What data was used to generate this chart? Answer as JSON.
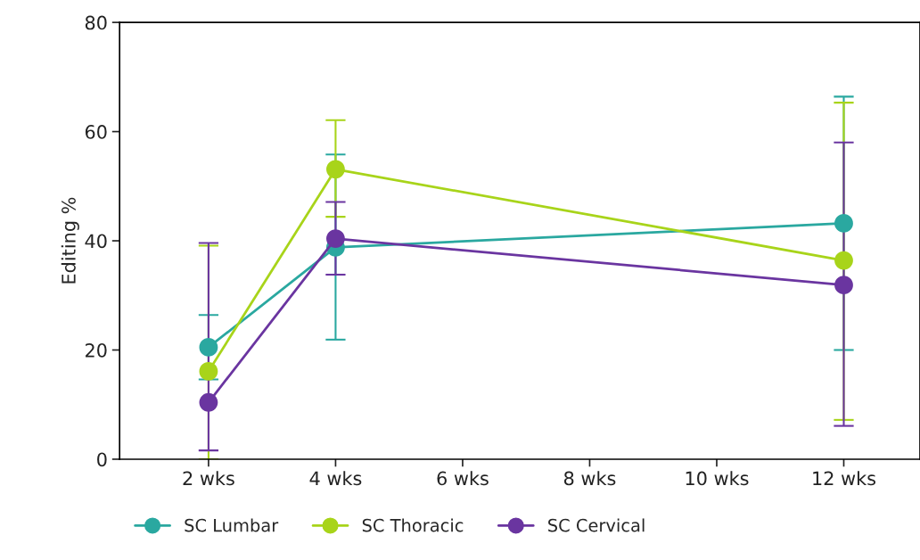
{
  "chart_data": {
    "type": "line",
    "ylabel": "Editing %",
    "x": [
      2,
      4,
      12
    ],
    "xlim": [
      0.6,
      13.2
    ],
    "xticks": [
      {
        "value": 2,
        "label": "2 wks"
      },
      {
        "value": 4,
        "label": "4 wks"
      },
      {
        "value": 6,
        "label": "6 wks"
      },
      {
        "value": 8,
        "label": "8 wks"
      },
      {
        "value": 10,
        "label": "10 wks"
      },
      {
        "value": 12,
        "label": "12 wks"
      }
    ],
    "ylim": [
      0,
      80
    ],
    "yticks": [
      0,
      20,
      40,
      60,
      80
    ],
    "series": [
      {
        "name": "SC Lumbar",
        "color": "#2aa8a0",
        "values": [
          20.5,
          38.8,
          43.2
        ],
        "errors": [
          [
            14.6,
            26.4
          ],
          [
            21.9,
            55.8
          ],
          [
            20.0,
            66.4
          ]
        ]
      },
      {
        "name": "SC Thoracic",
        "color": "#a8d41a",
        "values": [
          16.1,
          53.1,
          36.4
        ],
        "errors": [
          [
            0,
            39.1
          ],
          [
            44.4,
            62.1
          ],
          [
            7.2,
            65.3
          ]
        ]
      },
      {
        "name": "SC Cervical",
        "color": "#6a35a0",
        "values": [
          10.4,
          40.4,
          31.9
        ],
        "errors": [
          [
            1.6,
            39.6
          ],
          [
            33.8,
            47.1
          ],
          [
            6.1,
            58.0
          ]
        ]
      }
    ],
    "marker": "circle",
    "line_style": "solid",
    "grid": false,
    "legend": "bottom"
  }
}
